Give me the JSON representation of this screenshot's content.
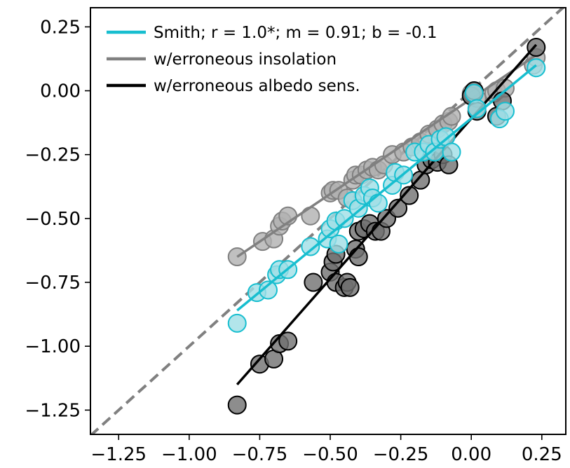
{
  "chart_data": {
    "type": "scatter",
    "title": "",
    "xlabel": "",
    "ylabel": "",
    "xlim": [
      -1.35,
      0.335
    ],
    "ylim": [
      -1.345,
      0.325
    ],
    "grid": false,
    "legend_placement": "top-left",
    "x_ticks": [
      "−1.25",
      "−1.00",
      "−0.75",
      "−0.50",
      "−0.25",
      "0.00",
      "0.25"
    ],
    "x_tick_values": [
      -1.25,
      -1.0,
      -0.75,
      -0.5,
      -0.25,
      0.0,
      0.25
    ],
    "y_ticks": [
      "0.25",
      "0.00",
      "−0.25",
      "−0.50",
      "−0.75",
      "−1.00",
      "−1.25"
    ],
    "y_tick_values": [
      0.25,
      0.0,
      -0.25,
      -0.5,
      -0.75,
      -1.0,
      -1.25
    ],
    "reference_line": {
      "style": "dashed",
      "color": "#808080",
      "slope": 1,
      "intercept": 0
    },
    "series": [
      {
        "name": "w/erroneous insolation",
        "color": "#808080",
        "marker_color": "#b0b0b0",
        "fit": {
          "x": [
            -0.83,
            0.23
          ],
          "y": [
            -0.65,
            0.14
          ]
        },
        "points": [
          [
            -0.83,
            -0.65
          ],
          [
            -0.74,
            -0.59
          ],
          [
            -0.7,
            -0.58
          ],
          [
            -0.68,
            -0.53
          ],
          [
            -0.67,
            -0.51
          ],
          [
            -0.65,
            -0.49
          ],
          [
            -0.57,
            -0.49
          ],
          [
            -0.5,
            -0.4
          ],
          [
            -0.49,
            -0.39
          ],
          [
            -0.47,
            -0.39
          ],
          [
            -0.44,
            -0.42
          ],
          [
            -0.42,
            -0.35
          ],
          [
            -0.41,
            -0.33
          ],
          [
            -0.39,
            -0.33
          ],
          [
            -0.37,
            -0.31
          ],
          [
            -0.35,
            -0.3
          ],
          [
            -0.33,
            -0.31
          ],
          [
            -0.31,
            -0.29
          ],
          [
            -0.28,
            -0.25
          ],
          [
            -0.24,
            -0.24
          ],
          [
            -0.21,
            -0.22
          ],
          [
            -0.18,
            -0.2
          ],
          [
            -0.15,
            -0.17
          ],
          [
            -0.12,
            -0.15
          ],
          [
            -0.1,
            -0.13
          ],
          [
            -0.08,
            -0.12
          ],
          [
            -0.07,
            -0.1
          ],
          [
            0.0,
            -0.01
          ],
          [
            0.02,
            -0.03
          ],
          [
            0.08,
            -0.01
          ],
          [
            0.09,
            0.0
          ],
          [
            0.12,
            0.01
          ],
          [
            0.22,
            0.1
          ],
          [
            0.23,
            0.13
          ]
        ]
      },
      {
        "name": "w/erroneous albedo sens.",
        "color": "#000000",
        "marker_color": "#707070",
        "fit": {
          "x": [
            -0.83,
            0.23
          ],
          "y": [
            -1.15,
            0.18
          ]
        },
        "points": [
          [
            -0.83,
            -1.23
          ],
          [
            -0.75,
            -1.07
          ],
          [
            -0.7,
            -1.05
          ],
          [
            -0.68,
            -0.99
          ],
          [
            -0.65,
            -0.98
          ],
          [
            -0.56,
            -0.75
          ],
          [
            -0.5,
            -0.71
          ],
          [
            -0.49,
            -0.67
          ],
          [
            -0.48,
            -0.64
          ],
          [
            -0.48,
            -0.75
          ],
          [
            -0.45,
            -0.77
          ],
          [
            -0.44,
            -0.75
          ],
          [
            -0.43,
            -0.77
          ],
          [
            -0.41,
            -0.62
          ],
          [
            -0.4,
            -0.55
          ],
          [
            -0.4,
            -0.65
          ],
          [
            -0.38,
            -0.54
          ],
          [
            -0.36,
            -0.52
          ],
          [
            -0.34,
            -0.55
          ],
          [
            -0.32,
            -0.55
          ],
          [
            -0.3,
            -0.5
          ],
          [
            -0.26,
            -0.46
          ],
          [
            -0.22,
            -0.41
          ],
          [
            -0.18,
            -0.35
          ],
          [
            -0.16,
            -0.29
          ],
          [
            -0.14,
            -0.27
          ],
          [
            -0.12,
            -0.28
          ],
          [
            -0.1,
            -0.25
          ],
          [
            -0.08,
            -0.29
          ],
          [
            0.0,
            -0.02
          ],
          [
            0.01,
            0.0
          ],
          [
            0.02,
            -0.08
          ],
          [
            0.09,
            -0.1
          ],
          [
            0.11,
            -0.04
          ],
          [
            0.23,
            0.17
          ]
        ]
      },
      {
        "name": "Smith; r = 1.0*; m = 0.91; b = -0.1",
        "color": "#17becf",
        "marker_color": "#9fdfe6",
        "fit": {
          "x": [
            -0.83,
            0.23
          ],
          "y": [
            -0.86,
            0.1
          ]
        },
        "points": [
          [
            -0.83,
            -0.91
          ],
          [
            -0.76,
            -0.79
          ],
          [
            -0.72,
            -0.78
          ],
          [
            -0.69,
            -0.72
          ],
          [
            -0.68,
            -0.7
          ],
          [
            -0.65,
            -0.7
          ],
          [
            -0.57,
            -0.61
          ],
          [
            -0.51,
            -0.58
          ],
          [
            -0.5,
            -0.54
          ],
          [
            -0.48,
            -0.51
          ],
          [
            -0.47,
            -0.6
          ],
          [
            -0.45,
            -0.5
          ],
          [
            -0.42,
            -0.43
          ],
          [
            -0.4,
            -0.46
          ],
          [
            -0.38,
            -0.41
          ],
          [
            -0.36,
            -0.38
          ],
          [
            -0.35,
            -0.42
          ],
          [
            -0.33,
            -0.44
          ],
          [
            -0.28,
            -0.37
          ],
          [
            -0.27,
            -0.32
          ],
          [
            -0.24,
            -0.33
          ],
          [
            -0.2,
            -0.24
          ],
          [
            -0.17,
            -0.24
          ],
          [
            -0.15,
            -0.21
          ],
          [
            -0.13,
            -0.24
          ],
          [
            -0.11,
            -0.19
          ],
          [
            -0.09,
            -0.18
          ],
          [
            -0.07,
            -0.24
          ],
          [
            0.01,
            -0.01
          ],
          [
            0.02,
            -0.07
          ],
          [
            0.1,
            -0.11
          ],
          [
            0.12,
            -0.08
          ],
          [
            0.23,
            0.09
          ]
        ]
      }
    ],
    "legend_order": [
      2,
      0,
      1
    ]
  }
}
